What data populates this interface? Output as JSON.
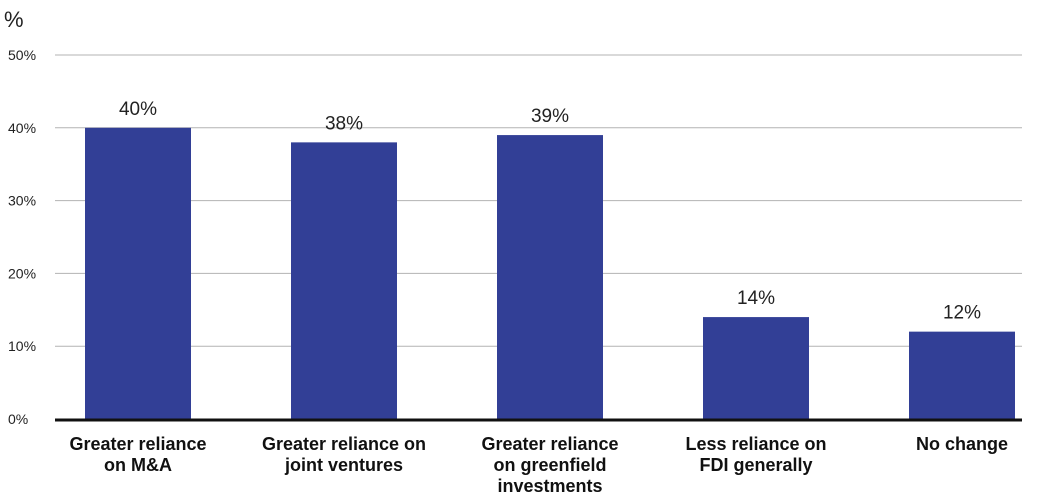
{
  "chart_data": {
    "type": "bar",
    "unit_label": "%",
    "categories": [
      [
        "Greater reliance",
        "on M&A"
      ],
      [
        "Greater reliance on",
        "joint ventures"
      ],
      [
        "Greater reliance",
        "on greenfield",
        "investments"
      ],
      [
        "Less reliance on",
        "FDI generally"
      ],
      [
        "No change"
      ]
    ],
    "values": [
      40,
      38,
      39,
      14,
      12
    ],
    "data_labels": [
      "40%",
      "38%",
      "39%",
      "14%",
      "12%"
    ],
    "yticks": [
      0,
      10,
      20,
      30,
      40,
      50
    ],
    "ytick_labels": [
      "0%",
      "10%",
      "20%",
      "30%",
      "40%",
      "50%"
    ],
    "ylim": [
      0,
      50
    ],
    "grid": true,
    "colors": {
      "bar": "#323f96",
      "grid": "#b3b3b3",
      "axis": "#111111"
    }
  }
}
